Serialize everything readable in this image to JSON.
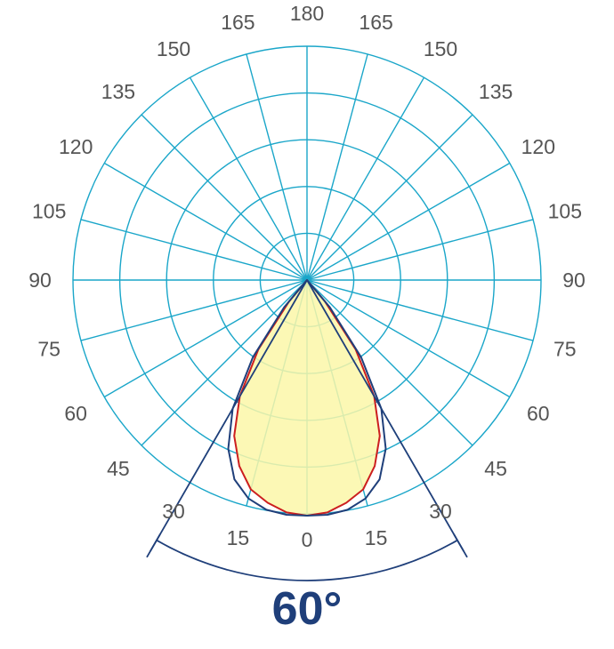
{
  "chart_data": {
    "type": "polar",
    "angle_tick_labels": {
      "left": [
        "0",
        "15",
        "30",
        "45",
        "60",
        "75",
        "90",
        "105",
        "120",
        "135",
        "150",
        "165",
        "180"
      ],
      "right": [
        "0",
        "15",
        "30",
        "45",
        "60",
        "75",
        "90",
        "105",
        "120",
        "135",
        "150",
        "165",
        "180"
      ]
    },
    "angles_deg": [
      0,
      15,
      30,
      45,
      60,
      75,
      90,
      105,
      120,
      135,
      150,
      165,
      180
    ],
    "rings": 5,
    "grid": true,
    "beam_angle_deg": 60,
    "beam_label": "60°",
    "series": [
      {
        "color": "#cc1f1f",
        "fill": "#fbf7a8",
        "points": [
          [
            0,
            1.0
          ],
          [
            5,
            0.99
          ],
          [
            10,
            0.96
          ],
          [
            15,
            0.92
          ],
          [
            20,
            0.84
          ],
          [
            25,
            0.73
          ],
          [
            30,
            0.57
          ],
          [
            35,
            0.36
          ],
          [
            40,
            0.12
          ],
          [
            45,
            0.0
          ]
        ]
      },
      {
        "color": "#1f3f7a",
        "points": [
          [
            0,
            1.0
          ],
          [
            5,
            1.0
          ],
          [
            10,
            0.99
          ],
          [
            15,
            0.96
          ],
          [
            20,
            0.9
          ],
          [
            25,
            0.79
          ],
          [
            30,
            0.63
          ],
          [
            35,
            0.4
          ],
          [
            40,
            0.15
          ],
          [
            45,
            0.0
          ]
        ]
      }
    ],
    "colors": {
      "grid": "#1aa6c9",
      "beam_lines": "#1f3f7a",
      "tick_text": "#555555"
    }
  }
}
